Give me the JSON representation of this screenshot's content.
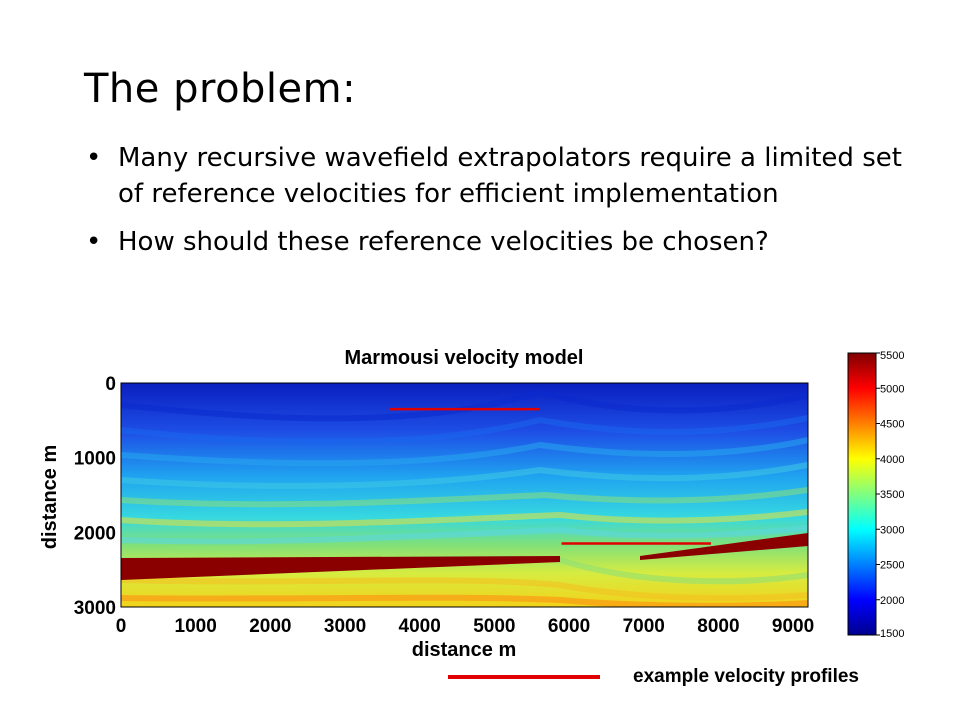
{
  "slide": {
    "title": "The problem:",
    "bullets": [
      "Many recursive wavefield extrapolators require a limited set of reference velocities for efficient implementation",
      "How should these reference velocities be chosen?"
    ]
  },
  "legend": {
    "label": "example velocity profiles",
    "color": "#e00000"
  },
  "chart_data": {
    "type": "heatmap",
    "title": "Marmousi velocity model",
    "xlabel": "distance m",
    "ylabel": "distance m",
    "xlim": [
      0,
      9200
    ],
    "ylim": [
      3000,
      0
    ],
    "xticks": [
      0,
      1000,
      2000,
      3000,
      4000,
      5000,
      6000,
      7000,
      8000,
      9000
    ],
    "yticks": [
      0,
      1000,
      2000,
      3000
    ],
    "colorbar": {
      "min": 1500,
      "max": 5500,
      "ticks": [
        1500,
        2000,
        2500,
        3000,
        3500,
        4000,
        4500,
        5000,
        5500
      ]
    },
    "profiles": [
      {
        "x": [
          3600,
          5600
        ],
        "depth": 350
      },
      {
        "x": [
          5900,
          7900
        ],
        "depth": 2150
      }
    ]
  }
}
